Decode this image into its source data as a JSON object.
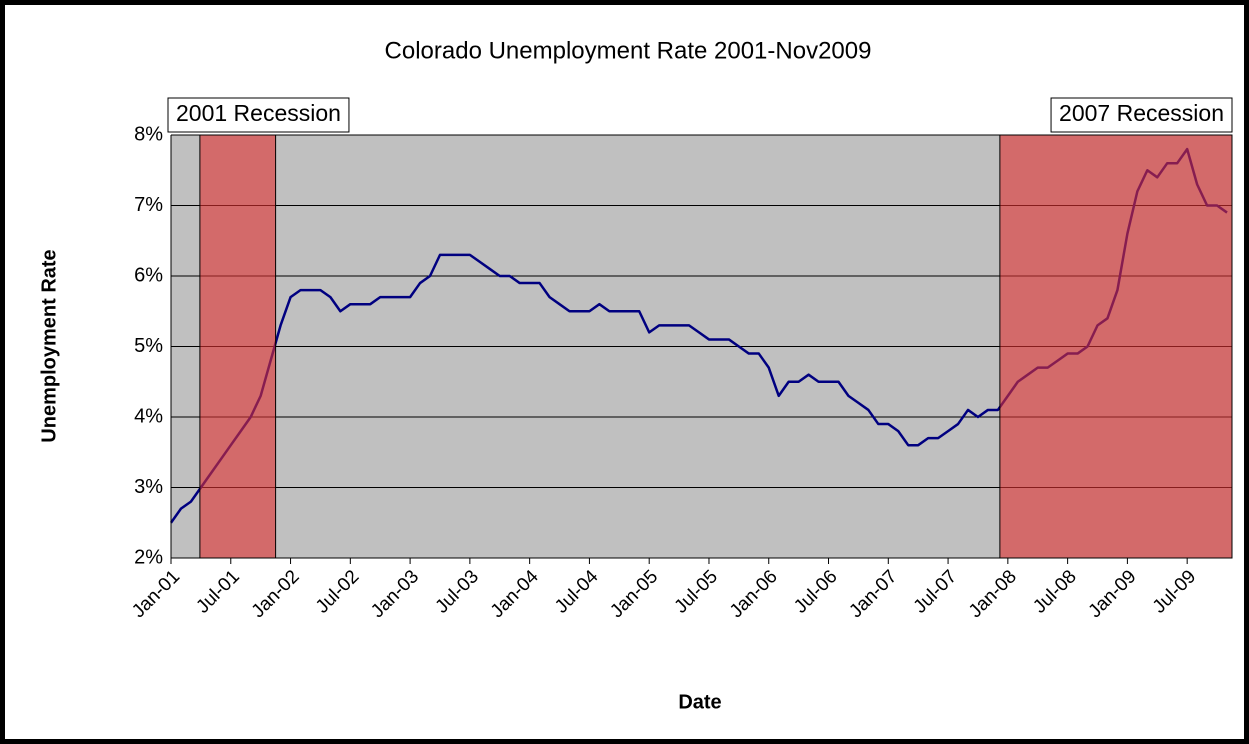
{
  "chart_data": {
    "type": "line",
    "title": "Colorado Unemployment Rate 2001-Nov2009",
    "x_label": "Date",
    "y_label": "Unemployment Rate",
    "categories": [
      "Jan-01",
      null,
      null,
      null,
      null,
      null,
      "Jul-01",
      null,
      null,
      null,
      null,
      null,
      "Jan-02",
      null,
      null,
      null,
      null,
      null,
      "Jul-02",
      null,
      null,
      null,
      null,
      null,
      "Jan-03",
      null,
      null,
      null,
      null,
      null,
      "Jul-03",
      null,
      null,
      null,
      null,
      null,
      "Jan-04",
      null,
      null,
      null,
      null,
      null,
      "Jul-04",
      null,
      null,
      null,
      null,
      null,
      "Jan-05",
      null,
      null,
      null,
      null,
      null,
      "Jul-05",
      null,
      null,
      null,
      null,
      null,
      "Jan-06",
      null,
      null,
      null,
      null,
      null,
      "Jul-06",
      null,
      null,
      null,
      null,
      null,
      "Jan-07",
      null,
      null,
      null,
      null,
      null,
      "Jul-07",
      null,
      null,
      null,
      null,
      null,
      "Jan-08",
      null,
      null,
      null,
      null,
      null,
      "Jul-08",
      null,
      null,
      null,
      null,
      null,
      "Jan-09",
      null,
      null,
      null,
      null,
      null,
      "Jul-09",
      null,
      null,
      null,
      null
    ],
    "series": [
      {
        "color": "#000080",
        "values": [
          2.5,
          2.7,
          2.8,
          3.0,
          3.2,
          3.4,
          3.6,
          3.8,
          4.0,
          4.3,
          4.8,
          5.3,
          5.7,
          5.8,
          5.8,
          5.8,
          5.7,
          5.5,
          5.6,
          5.6,
          5.6,
          5.7,
          5.7,
          5.7,
          5.7,
          5.9,
          6.0,
          6.3,
          6.3,
          6.3,
          6.3,
          6.2,
          6.1,
          6.0,
          6.0,
          5.9,
          5.9,
          5.9,
          5.7,
          5.6,
          5.5,
          5.5,
          5.5,
          5.6,
          5.5,
          5.5,
          5.5,
          5.5,
          5.2,
          5.3,
          5.3,
          5.3,
          5.3,
          5.2,
          5.1,
          5.1,
          5.1,
          5.0,
          4.9,
          4.9,
          4.7,
          4.3,
          4.5,
          4.5,
          4.6,
          4.5,
          4.5,
          4.5,
          4.3,
          4.2,
          4.1,
          3.9,
          3.9,
          3.8,
          3.6,
          3.6,
          3.7,
          3.7,
          3.8,
          3.9,
          4.1,
          4.0,
          4.1,
          4.1,
          4.3,
          4.5,
          4.6,
          4.7,
          4.7,
          4.8,
          4.9,
          4.9,
          5.0,
          5.3,
          5.4,
          5.8,
          6.6,
          7.2,
          7.5,
          7.4,
          7.6,
          7.6,
          7.8,
          7.3,
          7.0,
          7.0,
          6.9
        ]
      }
    ],
    "xlim": [
      0,
      106.5
    ],
    "ylim": [
      2,
      8
    ],
    "yticks": [
      {
        "value": 2,
        "label": "2%"
      },
      {
        "value": 3,
        "label": "3%"
      },
      {
        "value": 4,
        "label": "4%"
      },
      {
        "value": 5,
        "label": "5%"
      },
      {
        "value": 6,
        "label": "6%"
      },
      {
        "value": 7,
        "label": "7%"
      },
      {
        "value": 8,
        "label": "8%"
      }
    ],
    "grid": true,
    "background_color": "#c0c0c0",
    "shaded_regions": [
      {
        "label": "2001 Recession",
        "x": [
          2.9,
          10.5
        ],
        "color": "#e03030"
      },
      {
        "label": "2007 Recession",
        "x": [
          83.2,
          106.5
        ],
        "color": "#e03030"
      }
    ]
  }
}
